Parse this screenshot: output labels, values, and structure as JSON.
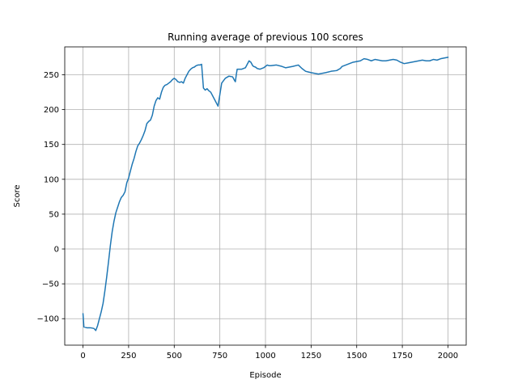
{
  "chart_data": {
    "type": "line",
    "title": "Running average of previous 100 scores",
    "xlabel": "Episode",
    "ylabel": "Score",
    "xlim": [
      -100,
      2100
    ],
    "ylim": [
      -138,
      290
    ],
    "xticks": [
      0,
      250,
      500,
      750,
      1000,
      1250,
      1500,
      1750,
      2000
    ],
    "yticks": [
      -100,
      -50,
      0,
      50,
      100,
      150,
      200,
      250
    ],
    "grid": true,
    "color": "#1f77b4",
    "series": [
      {
        "x": [
          0,
          5,
          20,
          40,
          60,
          70,
          80,
          90,
          100,
          110,
          120,
          130,
          140,
          150,
          160,
          170,
          180,
          190,
          200,
          210,
          220,
          230,
          240,
          250,
          260,
          270,
          280,
          290,
          300,
          310,
          320,
          330,
          340,
          350,
          360,
          370,
          380,
          390,
          400,
          410,
          420,
          430,
          440,
          450,
          460,
          470,
          480,
          490,
          500,
          510,
          520,
          530,
          540,
          550,
          560,
          570,
          580,
          590,
          600,
          610,
          620,
          630,
          640,
          650,
          660,
          670,
          680,
          690,
          700,
          720,
          740,
          760,
          780,
          800,
          820,
          830,
          835,
          840,
          845,
          850,
          870,
          890,
          910,
          920,
          930,
          935,
          945,
          955,
          970,
          990,
          1000,
          1010,
          1020,
          1030,
          1060,
          1090,
          1110,
          1130,
          1150,
          1180,
          1200,
          1220,
          1250,
          1270,
          1290,
          1310,
          1330,
          1360,
          1390,
          1410,
          1420,
          1440,
          1460,
          1480,
          1500,
          1520,
          1540,
          1560,
          1580,
          1600,
          1620,
          1640,
          1660,
          1680,
          1700,
          1720,
          1740,
          1760,
          1780,
          1800,
          1820,
          1840,
          1860,
          1880,
          1900,
          1920,
          1940,
          1960,
          1980,
          2000
        ],
        "y": [
          -93,
          -112,
          -113,
          -113,
          -114,
          -117,
          -110,
          -100,
          -90,
          -78,
          -60,
          -40,
          -18,
          5,
          25,
          40,
          52,
          60,
          68,
          74,
          77,
          82,
          95,
          102,
          112,
          122,
          130,
          140,
          148,
          152,
          157,
          163,
          170,
          180,
          183,
          185,
          192,
          205,
          213,
          217,
          215,
          225,
          232,
          235,
          236,
          238,
          240,
          243,
          245,
          243,
          240,
          239,
          240,
          238,
          245,
          250,
          255,
          258,
          260,
          261,
          263,
          264,
          264,
          265,
          231,
          228,
          230,
          227,
          225,
          215,
          205,
          238,
          245,
          248,
          247,
          242,
          240,
          250,
          258,
          258,
          258,
          260,
          270,
          268,
          263,
          262,
          261,
          259,
          258,
          260,
          262,
          264,
          263,
          263,
          264,
          262,
          260,
          261,
          262,
          264,
          259,
          255,
          253,
          252,
          251,
          252,
          253,
          255,
          256,
          259,
          262,
          264,
          266,
          268,
          269,
          270,
          273,
          272,
          270,
          272,
          271,
          270,
          270,
          271,
          272,
          271,
          268,
          266,
          267,
          268,
          269,
          270,
          271,
          270,
          270,
          272,
          271,
          273,
          274,
          275
        ]
      }
    ]
  }
}
